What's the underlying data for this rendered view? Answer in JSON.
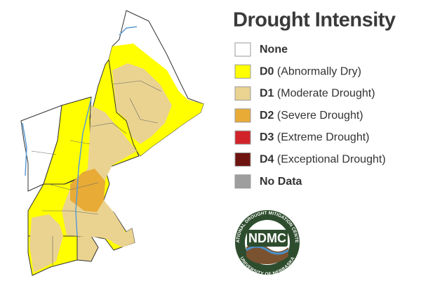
{
  "legend": {
    "title": "Drought Intensity",
    "items": [
      {
        "code": "None",
        "color": "#ffffff"
      },
      {
        "code": "D0",
        "label": "(Abnormally Dry)",
        "color": "#ffff00"
      },
      {
        "code": "D1",
        "label": "(Moderate Drought)",
        "color": "#ead391"
      },
      {
        "code": "D2",
        "label": "(Severe Drought)",
        "color": "#e8ab36"
      },
      {
        "code": "D3",
        "label": "(Extreme Drought)",
        "color": "#d2232a"
      },
      {
        "code": "D4",
        "label": "(Exceptional Drought)",
        "color": "#6e1410"
      },
      {
        "code": "No Data",
        "color": "#9e9e9e"
      }
    ]
  },
  "logo": {
    "abbr": "NDMC",
    "top": "NATIONAL DROUGHT MITIGATION CENTER",
    "bottom": "UNIVERSITY OF NEBRASKA"
  }
}
